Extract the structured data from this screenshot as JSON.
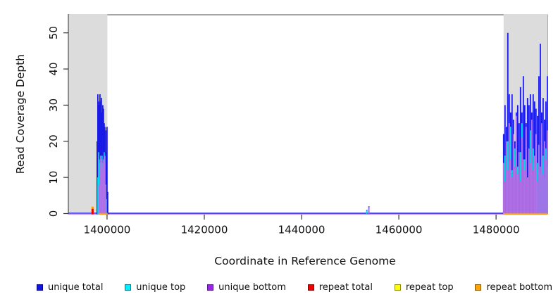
{
  "chart_data": {
    "type": "line",
    "title": "",
    "xlabel": "Coordinate in Reference Genome",
    "ylabel": "Read Coverage Depth",
    "xlim": [
      1392040,
      1490560
    ],
    "ylim": [
      0,
      55
    ],
    "grid": false,
    "legend_position": "bottom",
    "plot_bg": "#ffffff",
    "box_color": "#4d4d4d",
    "tick_color": "#333333",
    "text_color": "#111111",
    "x_ticks": [
      {
        "value": 1400000,
        "label": "1400000"
      },
      {
        "value": 1420000,
        "label": "1420000"
      },
      {
        "value": 1440000,
        "label": "1440000"
      },
      {
        "value": 1460000,
        "label": "1460000"
      },
      {
        "value": 1480000,
        "label": "1480000"
      }
    ],
    "y_ticks": [
      {
        "value": 0,
        "label": "0"
      },
      {
        "value": 10,
        "label": "10"
      },
      {
        "value": 20,
        "label": "20"
      },
      {
        "value": 30,
        "label": "30"
      },
      {
        "value": 40,
        "label": "40"
      },
      {
        "value": 50,
        "label": "50"
      }
    ],
    "shaded_regions": [
      {
        "from": 1392040,
        "to": 1400070,
        "color": "#dcdcdc"
      },
      {
        "from": 1481550,
        "to": 1490560,
        "color": "#dcdcdc"
      }
    ],
    "series": [
      {
        "name": "unique total",
        "color": "#1a1ae6",
        "width": 1.8,
        "points": [
          [
            1397970,
            20
          ],
          [
            1398115,
            33
          ],
          [
            1398260,
            31
          ],
          [
            1398405,
            30
          ],
          [
            1398550,
            33
          ],
          [
            1398695,
            31
          ],
          [
            1398840,
            32
          ],
          [
            1398985,
            28
          ],
          [
            1399130,
            30
          ],
          [
            1399275,
            29
          ],
          [
            1399420,
            25
          ],
          [
            1399565,
            24
          ],
          [
            1399710,
            23
          ],
          [
            1399855,
            17
          ],
          [
            1400000,
            24
          ],
          [
            1400145,
            6
          ],
          [
            1453420,
            1
          ],
          [
            1453850,
            2
          ],
          [
            1481550,
            22
          ],
          [
            1481840,
            30
          ],
          [
            1482130,
            24
          ],
          [
            1482420,
            50
          ],
          [
            1482710,
            33
          ],
          [
            1483000,
            28
          ],
          [
            1483290,
            33
          ],
          [
            1483580,
            26
          ],
          [
            1483870,
            20
          ],
          [
            1484160,
            28
          ],
          [
            1484450,
            30
          ],
          [
            1484740,
            25
          ],
          [
            1485030,
            35
          ],
          [
            1485320,
            28
          ],
          [
            1485610,
            38
          ],
          [
            1485900,
            30
          ],
          [
            1486190,
            25
          ],
          [
            1486480,
            32
          ],
          [
            1486770,
            30
          ],
          [
            1487060,
            33
          ],
          [
            1487350,
            28
          ],
          [
            1487640,
            33
          ],
          [
            1487930,
            31
          ],
          [
            1488220,
            29
          ],
          [
            1488510,
            27
          ],
          [
            1488800,
            38
          ],
          [
            1489090,
            47
          ],
          [
            1489380,
            28
          ],
          [
            1489670,
            32
          ],
          [
            1489960,
            26
          ],
          [
            1490250,
            31
          ],
          [
            1490540,
            38
          ]
        ]
      },
      {
        "name": "unique top",
        "color": "#00dcec",
        "width": 1.6,
        "points": [
          [
            1398115,
            10
          ],
          [
            1398260,
            17
          ],
          [
            1398405,
            15
          ],
          [
            1398550,
            12
          ],
          [
            1398695,
            13
          ],
          [
            1398840,
            10
          ],
          [
            1398985,
            16
          ],
          [
            1399130,
            14
          ],
          [
            1399275,
            13
          ],
          [
            1399420,
            17
          ],
          [
            1399565,
            16
          ],
          [
            1399710,
            8
          ],
          [
            1399855,
            4
          ],
          [
            1453420,
            0.8
          ],
          [
            1481550,
            8
          ],
          [
            1481840,
            16
          ],
          [
            1482130,
            10
          ],
          [
            1482420,
            20
          ],
          [
            1482710,
            14
          ],
          [
            1483000,
            24
          ],
          [
            1483290,
            12
          ],
          [
            1483580,
            9
          ],
          [
            1483870,
            18
          ],
          [
            1484160,
            22
          ],
          [
            1484450,
            13
          ],
          [
            1484740,
            10
          ],
          [
            1485030,
            17
          ],
          [
            1485320,
            25
          ],
          [
            1485610,
            11
          ],
          [
            1485900,
            15
          ],
          [
            1486190,
            20
          ],
          [
            1486480,
            9
          ],
          [
            1486770,
            16
          ],
          [
            1487060,
            23
          ],
          [
            1487350,
            12
          ],
          [
            1487640,
            18
          ],
          [
            1487930,
            10
          ],
          [
            1488220,
            21
          ],
          [
            1488510,
            14
          ],
          [
            1488800,
            19
          ],
          [
            1489090,
            11
          ],
          [
            1489380,
            24
          ],
          [
            1489670,
            16
          ],
          [
            1489960,
            10
          ],
          [
            1490250,
            18
          ],
          [
            1490540,
            13
          ]
        ]
      },
      {
        "name": "unique bottom",
        "color": "#b070e8",
        "width": 1.6,
        "points": [
          [
            1398405,
            8
          ],
          [
            1398550,
            14
          ],
          [
            1398695,
            16
          ],
          [
            1398840,
            15
          ],
          [
            1398985,
            12
          ],
          [
            1399130,
            14
          ],
          [
            1399275,
            15
          ],
          [
            1399420,
            16
          ],
          [
            1399565,
            14
          ],
          [
            1399710,
            8
          ],
          [
            1453850,
            1.8
          ],
          [
            1481550,
            14
          ],
          [
            1481840,
            9
          ],
          [
            1482130,
            20
          ],
          [
            1482420,
            12
          ],
          [
            1482710,
            25
          ],
          [
            1483000,
            15
          ],
          [
            1483290,
            10
          ],
          [
            1483580,
            22
          ],
          [
            1483870,
            13
          ],
          [
            1484160,
            27
          ],
          [
            1484450,
            11
          ],
          [
            1484740,
            17
          ],
          [
            1485030,
            9
          ],
          [
            1485320,
            21
          ],
          [
            1485610,
            15
          ],
          [
            1485900,
            12
          ],
          [
            1486190,
            24
          ],
          [
            1486480,
            10
          ],
          [
            1486770,
            18
          ],
          [
            1487060,
            14
          ],
          [
            1487350,
            26
          ],
          [
            1487640,
            12
          ],
          [
            1487930,
            16
          ],
          [
            1488220,
            22
          ],
          [
            1488510,
            9
          ],
          [
            1488800,
            19
          ],
          [
            1489090,
            13
          ],
          [
            1489380,
            25
          ],
          [
            1489670,
            11
          ],
          [
            1489960,
            20
          ],
          [
            1490250,
            15
          ],
          [
            1490540,
            23
          ]
        ]
      },
      {
        "name": "repeat top",
        "color": "#ffff00",
        "width": 3,
        "points": []
      },
      {
        "name": "repeat bottom",
        "color": "#ff9d00",
        "width": 3,
        "points": [
          [
            1397030,
            1.9
          ]
        ]
      },
      {
        "name": "repeat total",
        "color": "#e80000",
        "width": 3,
        "points": [
          [
            1397030,
            1.3
          ]
        ]
      }
    ],
    "baselines": [
      {
        "series": "unique total",
        "color": "#2222e6",
        "from": 1392040,
        "to": 1490560,
        "offset": -0.6,
        "lw": 1.4,
        "layer": "under"
      },
      {
        "series": "unique bottom",
        "color": "#c09aee",
        "from": 1392040,
        "to": 1490560,
        "offset": 0.9,
        "lw": 1.4,
        "layer": "under"
      },
      {
        "series": "repeat bottom",
        "color": "#ff9d00",
        "from": 1398350,
        "to": 1400120,
        "offset": 0.3,
        "lw": 2.2,
        "layer": "over"
      },
      {
        "series": "repeat bottom",
        "color": "#ff9d00",
        "from": 1481550,
        "to": 1490560,
        "offset": 0.3,
        "lw": 2.2,
        "layer": "over"
      }
    ],
    "legend": [
      {
        "label": "unique total",
        "fill": "#1414e0",
        "border": "#00008b"
      },
      {
        "label": "unique top",
        "fill": "#00f0ff",
        "border": "#007b8b"
      },
      {
        "label": "unique bottom",
        "fill": "#a020f0",
        "border": "#551a8b"
      },
      {
        "label": "repeat total",
        "fill": "#f00000",
        "border": "#8b0000"
      },
      {
        "label": "repeat top",
        "fill": "#ffff00",
        "border": "#8b8b00"
      },
      {
        "label": "repeat bottom",
        "fill": "#ffa500",
        "border": "#8b5a00"
      }
    ]
  }
}
